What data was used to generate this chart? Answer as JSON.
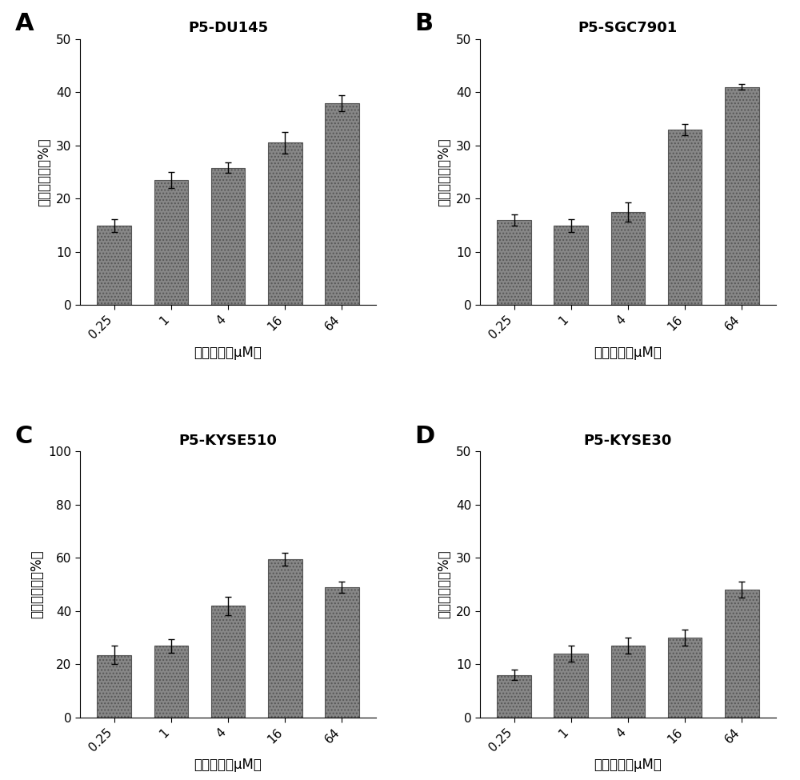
{
  "panels": [
    {
      "label": "A",
      "title": "P5-DU145",
      "categories": [
        "0.25",
        "1",
        "4",
        "16",
        "64"
      ],
      "values": [
        15.0,
        23.5,
        25.8,
        30.5,
        38.0
      ],
      "errors": [
        1.2,
        1.5,
        1.0,
        2.0,
        1.5
      ],
      "ylim": [
        0,
        50
      ],
      "yticks": [
        0,
        10,
        20,
        30,
        40,
        50
      ]
    },
    {
      "label": "B",
      "title": "P5-SGC7901",
      "categories": [
        "0.25",
        "1",
        "4",
        "16",
        "64"
      ],
      "values": [
        16.0,
        15.0,
        17.5,
        33.0,
        41.0
      ],
      "errors": [
        1.0,
        1.2,
        1.8,
        1.0,
        0.5
      ],
      "ylim": [
        0,
        50
      ],
      "yticks": [
        0,
        10,
        20,
        30,
        40,
        50
      ]
    },
    {
      "label": "C",
      "title": "P5-KYSE510",
      "categories": [
        "0.25",
        "1",
        "4",
        "16",
        "64"
      ],
      "values": [
        23.5,
        27.0,
        42.0,
        59.5,
        49.0
      ],
      "errors": [
        3.5,
        2.5,
        3.5,
        2.5,
        2.0
      ],
      "ylim": [
        0,
        100
      ],
      "yticks": [
        0,
        20,
        40,
        60,
        80,
        100
      ]
    },
    {
      "label": "D",
      "title": "P5-KYSE30",
      "categories": [
        "0.25",
        "1",
        "4",
        "16",
        "64"
      ],
      "values": [
        8.0,
        12.0,
        13.5,
        15.0,
        24.0
      ],
      "errors": [
        1.0,
        1.5,
        1.5,
        1.5,
        1.5
      ],
      "ylim": [
        0,
        50
      ],
      "yticks": [
        0,
        10,
        20,
        30,
        40,
        50
      ]
    }
  ],
  "bar_color": "#878787",
  "bar_edgecolor": "#555555",
  "xlabel_cn": "能的浓度（μM）",
  "ylabel_cn": "相对抑制率（%）",
  "background_color": "#ffffff",
  "title_fontsize": 13,
  "label_fontsize": 12,
  "tick_fontsize": 11,
  "panel_label_fontsize": 22
}
